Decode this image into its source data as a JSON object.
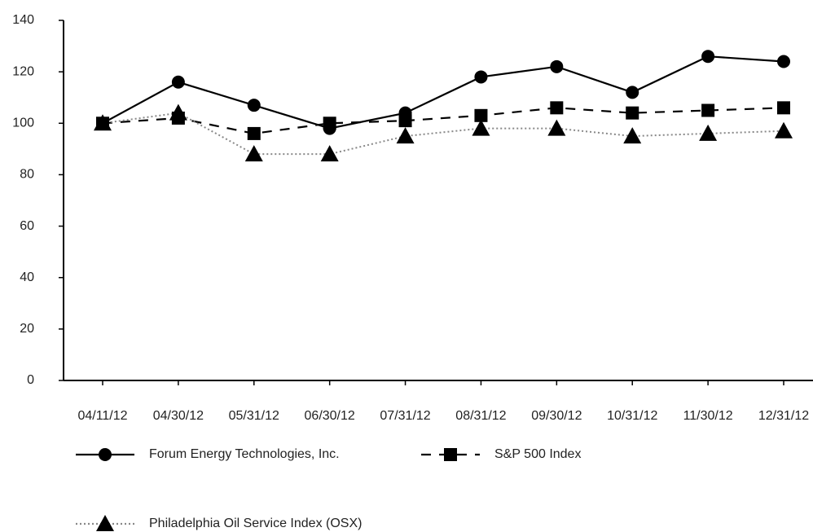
{
  "chart_data": {
    "type": "line",
    "categories": [
      "04/11/12",
      "04/30/12",
      "05/31/12",
      "06/30/12",
      "07/31/12",
      "08/31/12",
      "09/30/12",
      "10/31/12",
      "11/30/12",
      "12/31/12"
    ],
    "series": [
      {
        "name": "Forum Energy Technologies, Inc.",
        "color": "#000000",
        "line_style": "solid",
        "marker": "circle",
        "values": [
          100,
          116,
          107,
          98,
          104,
          118,
          122,
          112,
          126,
          124
        ]
      },
      {
        "name": "S&P 500 Index",
        "color": "#000000",
        "line_style": "dashed",
        "marker": "square",
        "values": [
          100,
          102,
          96,
          100,
          101,
          103,
          106,
          104,
          105,
          106
        ]
      },
      {
        "name": "Philadelphia Oil Service Index (OSX)",
        "color": "#888888",
        "marker_color": "#000000",
        "line_style": "dotted",
        "marker": "triangle",
        "values": [
          100,
          104,
          88,
          88,
          95,
          98,
          98,
          95,
          96,
          97
        ]
      }
    ],
    "ylim": [
      0,
      140
    ],
    "yticks": [
      0,
      20,
      40,
      60,
      80,
      100,
      120,
      140
    ]
  }
}
